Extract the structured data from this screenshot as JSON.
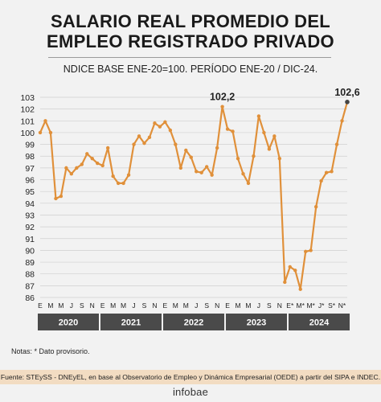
{
  "header": {
    "title_line1": "SALARIO REAL PROMEDIO DEL",
    "title_line2": "EMPLEO REGISTRADO PRIVADO",
    "subtitle": "NDICE BASE ENE-20=100. PERÍODO ENE-20 / DIC-24."
  },
  "footer": {
    "notes": "Notas: * Dato provisorio.",
    "source": "Fuente: STEySS - DNEyEL, en base al Observatorio de Empleo y Dinámica Empresarial (OEDE) a partir del SIPA e INDEC.",
    "brand": "infobae"
  },
  "colors": {
    "line": "#e0903a",
    "grid": "#cfcfcf",
    "year_band": "#4a4a4a",
    "highlight_point": "#444444"
  },
  "chart_data": {
    "type": "line",
    "ylim": [
      86,
      103
    ],
    "yticks": [
      86,
      87,
      88,
      89,
      90,
      91,
      92,
      93,
      94,
      95,
      96,
      97,
      98,
      99,
      100,
      101,
      102,
      103
    ],
    "grid": "horizontal",
    "x_tick_labels": [
      "E",
      "M",
      "M",
      "J",
      "S",
      "N",
      "E",
      "M",
      "M",
      "J",
      "S",
      "N",
      "E",
      "M",
      "M",
      "J",
      "S",
      "N",
      "E",
      "M",
      "M",
      "J",
      "S",
      "N",
      "E*",
      "M*",
      "M*",
      "J*",
      "S*",
      "N*"
    ],
    "year_labels": [
      "2020",
      "2021",
      "2022",
      "2023",
      "2024"
    ],
    "annotations": [
      {
        "index": 35,
        "label": "102,2"
      },
      {
        "index": 59,
        "label": "102,6"
      }
    ],
    "series": [
      {
        "values": [
          100.0,
          101.0,
          100.0,
          94.4,
          94.6,
          97.0,
          96.5,
          97.0,
          97.3,
          98.2,
          97.8,
          97.4,
          97.2,
          98.7,
          96.3,
          95.7,
          95.7,
          96.4,
          99.0,
          99.7,
          99.1,
          99.6,
          100.8,
          100.5,
          100.9,
          100.2,
          99.0,
          97.0,
          98.5,
          97.9,
          96.7,
          96.6,
          97.1,
          96.4,
          98.7,
          102.2,
          100.3,
          100.1,
          97.8,
          96.5,
          95.7,
          98.0,
          101.4,
          100.0,
          98.6,
          99.7,
          97.8,
          87.3,
          88.6,
          88.3,
          86.7,
          89.9,
          90.0,
          93.7,
          95.9,
          96.6,
          96.7,
          99.0,
          101.0,
          102.6
        ]
      }
    ]
  }
}
